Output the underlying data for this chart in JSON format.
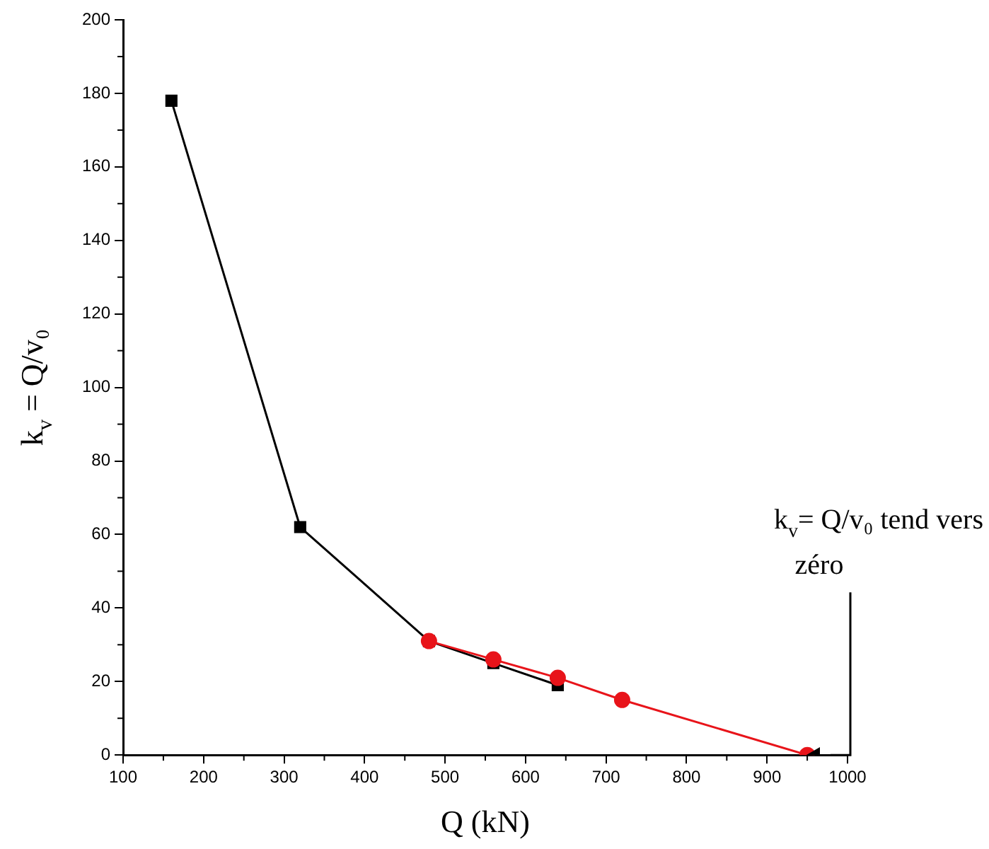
{
  "chart_data": {
    "type": "line",
    "xlabel": "Q (kN)",
    "ylabel": "k$_{v}$ = Q/v₀",
    "xlim": [
      100,
      1000
    ],
    "ylim": [
      0,
      200
    ],
    "xticks": [
      100,
      200,
      300,
      400,
      500,
      600,
      700,
      800,
      900,
      1000
    ],
    "yticks": [
      0,
      20,
      40,
      60,
      80,
      100,
      120,
      140,
      160,
      180,
      200
    ],
    "grid": false,
    "legend": false,
    "line_style": "solid",
    "series": [
      {
        "color": "#000000",
        "marker": "square",
        "x": [
          160,
          320,
          480,
          560,
          640
        ],
        "values": [
          178,
          62,
          31,
          25,
          19
        ]
      },
      {
        "color": "#e8141a",
        "marker": "circle",
        "x": [
          480,
          560,
          640,
          720,
          950
        ],
        "values": [
          31,
          26,
          21,
          15,
          0
        ]
      },
      {
        "type": "scatter",
        "color": "#000000",
        "marker": "triangle",
        "x": [
          960
        ],
        "values": [
          0
        ]
      }
    ],
    "annotations": [
      "k$_{v}$= Q/v₀ tend vers zéro"
    ]
  }
}
